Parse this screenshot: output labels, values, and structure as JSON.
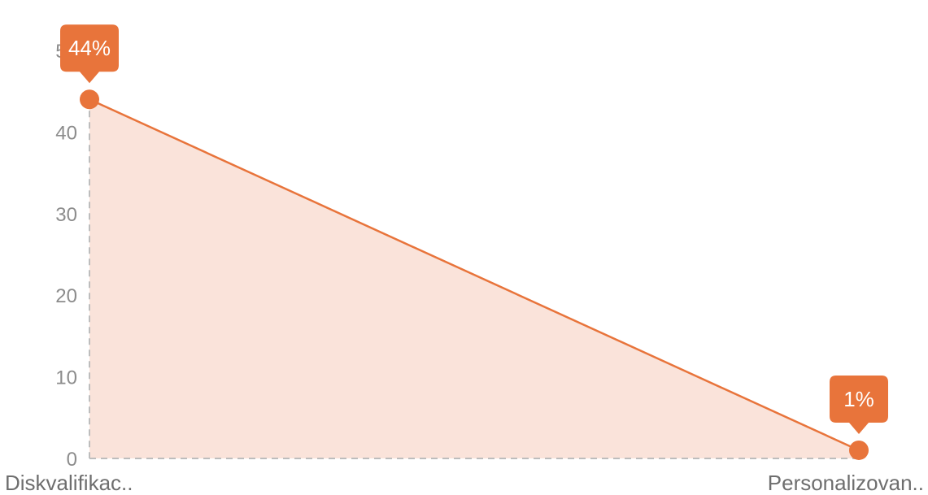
{
  "chart_data": {
    "type": "area",
    "categories": [
      "Diskvalifikac..",
      "Personalizovan.."
    ],
    "values": [
      44,
      1
    ],
    "data_labels": [
      "44%",
      "1%"
    ],
    "ylim": [
      0,
      50
    ],
    "yticks": [
      0,
      10,
      20,
      30,
      40,
      50
    ],
    "grid": false,
    "colors": {
      "line": "#e8743b",
      "fill": "#fae3da",
      "axis": "#bdbdbd"
    }
  }
}
